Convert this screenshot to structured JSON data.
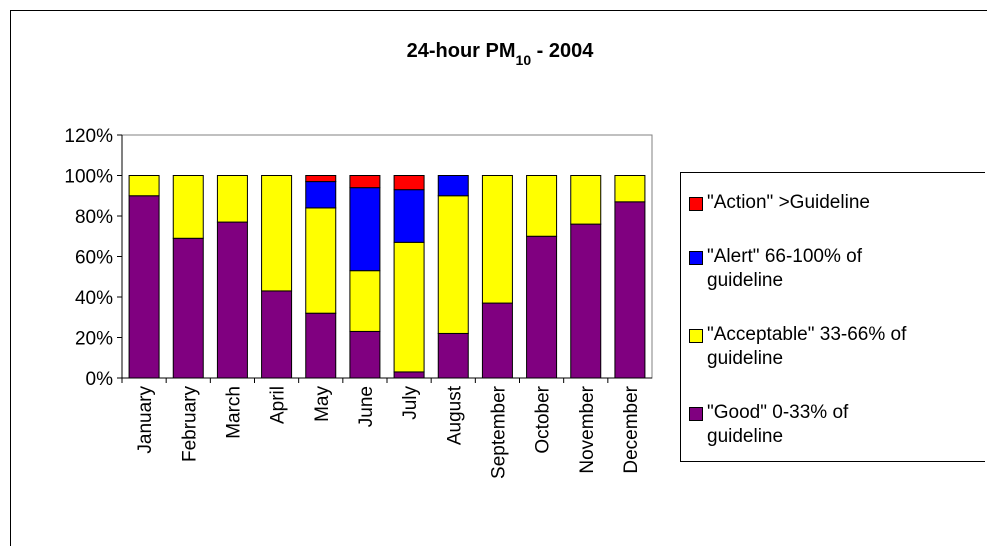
{
  "chart_data": {
    "type": "stacked-bar",
    "title": {
      "text": "24-hour PM",
      "subscript": "10",
      "suffix": " - 2004"
    },
    "categories": [
      "January",
      "February",
      "March",
      "April",
      "May",
      "June",
      "July",
      "August",
      "September",
      "October",
      "November",
      "December"
    ],
    "series": [
      {
        "name": "\"Good\" 0-33% of guideline",
        "color": "#800080",
        "values": [
          90,
          69,
          77,
          43,
          32,
          23,
          3,
          22,
          37,
          70,
          76,
          87
        ]
      },
      {
        "name": "\"Acceptable\" 33-66% of guideline",
        "color": "#ffff00",
        "values": [
          10,
          31,
          23,
          57,
          52,
          30,
          64,
          68,
          63,
          30,
          24,
          13
        ]
      },
      {
        "name": "\"Alert\" 66-100% of guideline",
        "color": "#0000ff",
        "values": [
          0,
          0,
          0,
          0,
          13,
          41,
          26,
          10,
          0,
          0,
          0,
          0
        ]
      },
      {
        "name": "\"Action\" >Guideline",
        "color": "#ff0000",
        "values": [
          0,
          0,
          0,
          0,
          3,
          6,
          7,
          0,
          0,
          0,
          0,
          0
        ]
      }
    ],
    "ylim": [
      0,
      120
    ],
    "yticks": [
      {
        "value": 0,
        "label": "0%"
      },
      {
        "value": 20,
        "label": "20%"
      },
      {
        "value": 40,
        "label": "40%"
      },
      {
        "value": 60,
        "label": "60%"
      },
      {
        "value": 80,
        "label": "80%"
      },
      {
        "value": 100,
        "label": "100%"
      },
      {
        "value": 120,
        "label": "120%"
      }
    ],
    "grid": false,
    "legend": "right"
  }
}
